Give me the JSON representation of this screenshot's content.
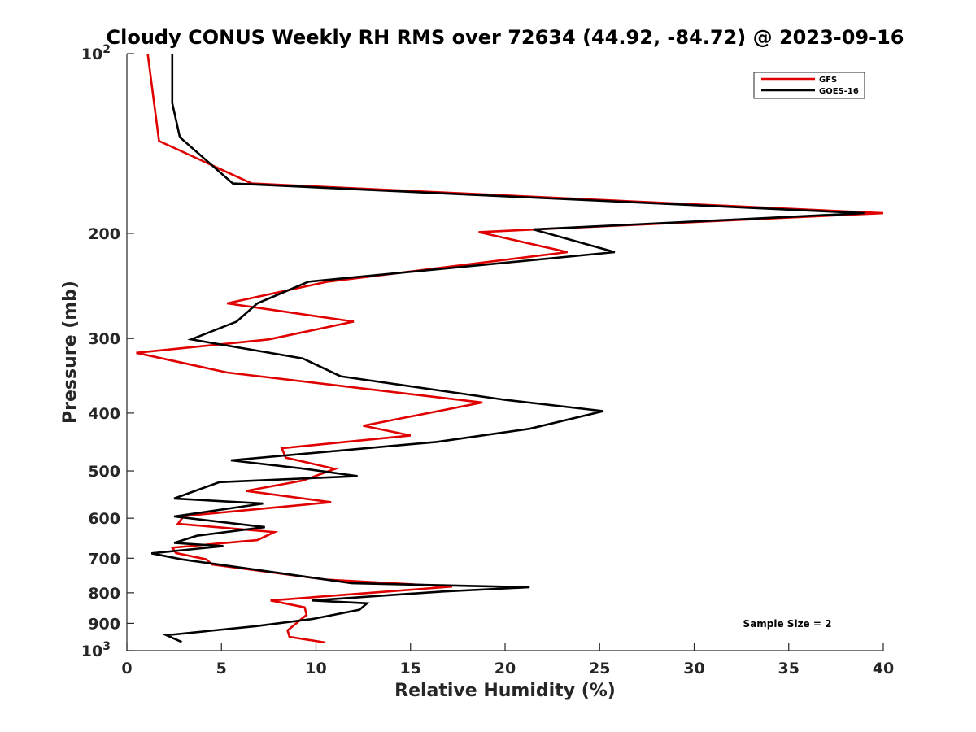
{
  "chart_data": {
    "type": "line",
    "title": "Cloudy CONUS Weekly RH RMS over 72634 (44.92, -84.72) @ 2023-09-16",
    "xlabel": "Relative Humidity (%)",
    "ylabel": "Pressure (mb)",
    "xlim": [
      0,
      40
    ],
    "ylim": [
      100,
      1000
    ],
    "y_scale": "log",
    "y_reversed": true,
    "x_ticks": [
      {
        "value": 0,
        "label": "0"
      },
      {
        "value": 5,
        "label": "5"
      },
      {
        "value": 10,
        "label": "10"
      },
      {
        "value": 15,
        "label": "15"
      },
      {
        "value": 20,
        "label": "20"
      },
      {
        "value": 25,
        "label": "25"
      },
      {
        "value": 30,
        "label": "30"
      },
      {
        "value": 35,
        "label": "35"
      },
      {
        "value": 40,
        "label": "40"
      }
    ],
    "y_ticks": [
      {
        "value": 100,
        "label": "10",
        "sup": "2"
      },
      {
        "value": 200,
        "label": "200",
        "sup": ""
      },
      {
        "value": 300,
        "label": "300",
        "sup": ""
      },
      {
        "value": 400,
        "label": "400",
        "sup": ""
      },
      {
        "value": 500,
        "label": "500",
        "sup": ""
      },
      {
        "value": 600,
        "label": "600",
        "sup": ""
      },
      {
        "value": 700,
        "label": "700",
        "sup": ""
      },
      {
        "value": 800,
        "label": "800",
        "sup": ""
      },
      {
        "value": 900,
        "label": "900",
        "sup": ""
      },
      {
        "value": 1000,
        "label": "10",
        "sup": "3"
      }
    ],
    "grid": false,
    "legend_position": "top-right",
    "series": [
      {
        "name": "GFS",
        "color": "#e00000",
        "points": [
          [
            1.1,
            100
          ],
          [
            1.7,
            140
          ],
          [
            6.6,
            165
          ],
          [
            40.0,
            185
          ],
          [
            18.6,
            199
          ],
          [
            23.3,
            215
          ],
          [
            10.6,
            241
          ],
          [
            5.3,
            262
          ],
          [
            12.0,
            281
          ],
          [
            7.5,
            301
          ],
          [
            0.5,
            317
          ],
          [
            5.3,
            342
          ],
          [
            18.8,
            384
          ],
          [
            12.5,
            420
          ],
          [
            15.0,
            436
          ],
          [
            8.2,
            458
          ],
          [
            8.4,
            475
          ],
          [
            11.0,
            496
          ],
          [
            9.3,
            519
          ],
          [
            6.3,
            540
          ],
          [
            10.8,
            564
          ],
          [
            3.0,
            595
          ],
          [
            2.7,
            613
          ],
          [
            7.8,
            633
          ],
          [
            6.9,
            653
          ],
          [
            2.4,
            672
          ],
          [
            2.6,
            686
          ],
          [
            4.2,
            703
          ],
          [
            4.5,
            717
          ],
          [
            10.5,
            760
          ],
          [
            17.2,
            781
          ],
          [
            7.6,
            824
          ],
          [
            9.4,
            846
          ],
          [
            9.5,
            871
          ],
          [
            8.5,
            925
          ],
          [
            8.6,
            948
          ],
          [
            10.5,
            969
          ]
        ]
      },
      {
        "name": "GOES-16",
        "color": "#000000",
        "points": [
          [
            2.4,
            100
          ],
          [
            2.4,
            121
          ],
          [
            2.8,
            138
          ],
          [
            5.6,
            165
          ],
          [
            39.0,
            185
          ],
          [
            21.5,
            197
          ],
          [
            25.8,
            215
          ],
          [
            9.6,
            241
          ],
          [
            6.9,
            262
          ],
          [
            5.8,
            281
          ],
          [
            3.4,
            301
          ],
          [
            9.3,
            324
          ],
          [
            11.3,
            347
          ],
          [
            20.0,
            380
          ],
          [
            25.2,
            397
          ],
          [
            21.3,
            425
          ],
          [
            16.4,
            447
          ],
          [
            5.5,
            480
          ],
          [
            9.2,
            495
          ],
          [
            12.2,
            510
          ],
          [
            4.9,
            522
          ],
          [
            2.5,
            556
          ],
          [
            7.2,
            567
          ],
          [
            2.5,
            596
          ],
          [
            7.3,
            621
          ],
          [
            3.7,
            642
          ],
          [
            2.5,
            660
          ],
          [
            5.1,
            668
          ],
          [
            1.3,
            687
          ],
          [
            2.9,
            703
          ],
          [
            11.9,
            771
          ],
          [
            21.3,
            783
          ],
          [
            16.7,
            796
          ],
          [
            9.8,
            824
          ],
          [
            12.7,
            833
          ],
          [
            12.3,
            854
          ],
          [
            9.8,
            885
          ],
          [
            6.8,
            910
          ],
          [
            2.1,
            942
          ],
          [
            2.9,
            967
          ]
        ]
      }
    ],
    "annotation": "Sample Size = 2"
  }
}
